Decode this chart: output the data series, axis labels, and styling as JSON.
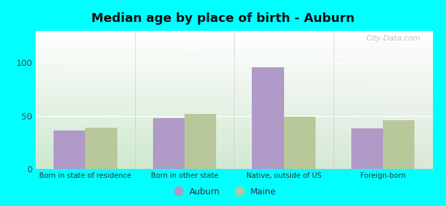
{
  "title": "Median age by place of birth - Auburn",
  "categories": [
    "Born in state of residence",
    "Born in other state",
    "Native, outside of US",
    "Foreign-born"
  ],
  "auburn_values": [
    36,
    48,
    96,
    38
  ],
  "maine_values": [
    39,
    52,
    49,
    46
  ],
  "auburn_color": "#b09ac8",
  "maine_color": "#b8c89a",
  "background_outer": "#00ffff",
  "ylim": [
    0,
    130
  ],
  "yticks": [
    0,
    50,
    100
  ],
  "bar_width": 0.32,
  "legend_labels": [
    "Auburn",
    "Maine"
  ],
  "title_fontsize": 13,
  "watermark": "City-Data.com"
}
